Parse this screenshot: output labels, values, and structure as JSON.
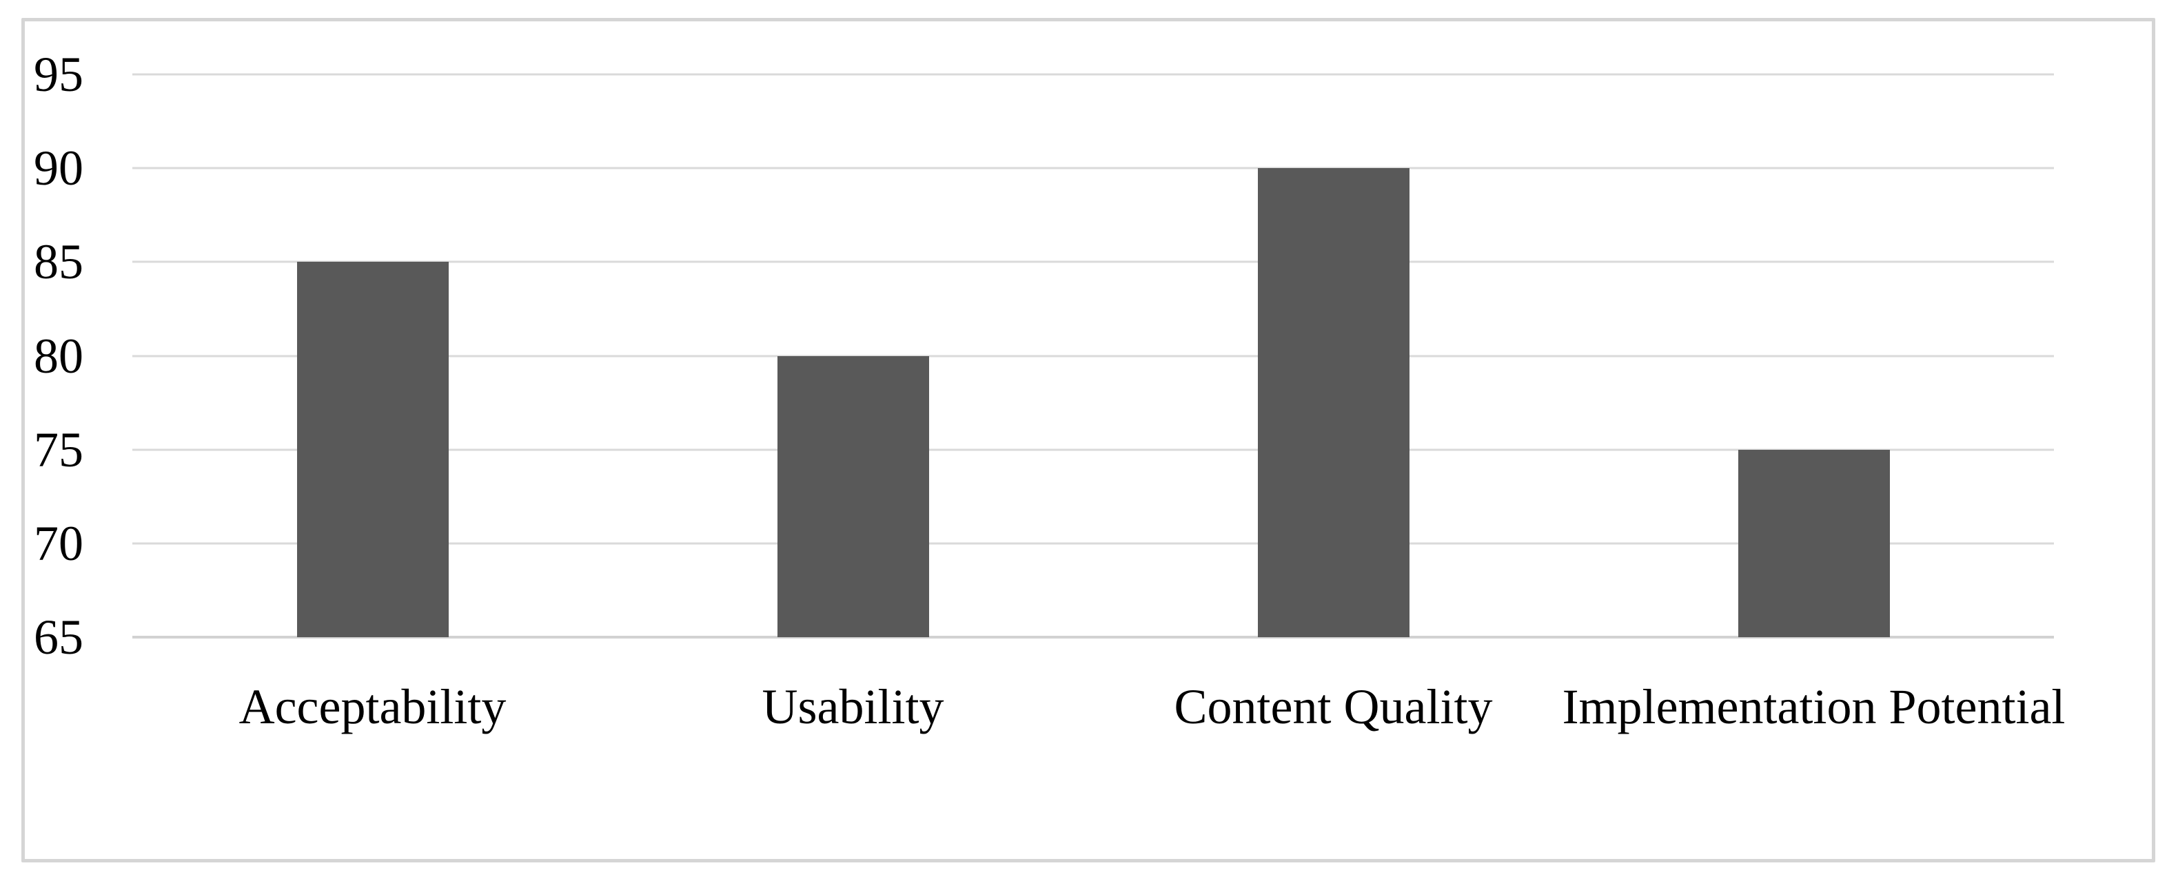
{
  "chart_data": {
    "type": "bar",
    "title": "",
    "xlabel": "",
    "ylabel": "",
    "categories": [
      "Acceptability",
      "Usability",
      "Content Quality",
      "Implementation Potential"
    ],
    "values": [
      85,
      80,
      90,
      75
    ],
    "ylim": [
      65,
      95
    ],
    "yticks": [
      65,
      70,
      75,
      80,
      85,
      90,
      95
    ],
    "ytick_step": 5,
    "grid": true,
    "legend_position": "none",
    "bar_color": "#595959",
    "gridline_color": "#dadada",
    "axis_line_color": "#d2d2d2",
    "figure_border_color": "#d5d5d5",
    "background_color": "#ffffff",
    "text_color": "#000000"
  }
}
